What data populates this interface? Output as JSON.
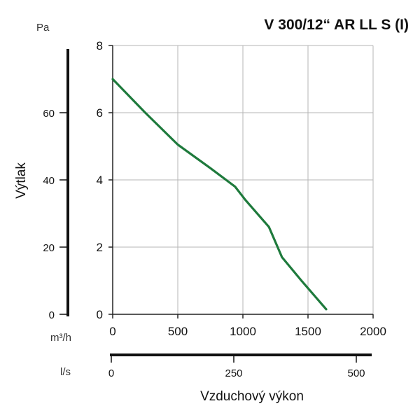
{
  "chart_data": {
    "type": "line",
    "title": "V 300/12“ AR LL S (I)",
    "xlabel": "Vzduchový výkon",
    "ylabel": "Výtlak",
    "x_unit": "m³/h",
    "x_secondary_unit": "l/s",
    "y_unit": "Pa",
    "xlim": [
      0,
      2000
    ],
    "x_ticks": [
      0,
      500,
      1000,
      1500,
      2000
    ],
    "x_secondary_ticks": [
      0,
      250,
      500
    ],
    "x_secondary_lim": [
      0,
      500
    ],
    "ylim": [
      0,
      8
    ],
    "y_ticks": [
      0,
      2,
      4,
      6,
      8
    ],
    "y_secondary_ticks": [
      0,
      20,
      40,
      60
    ],
    "y_secondary_lim": [
      0,
      80
    ],
    "grid": true,
    "series": [
      {
        "name": "",
        "color": "#1e7a3c",
        "x": [
          0,
          250,
          500,
          750,
          940,
          1020,
          1200,
          1300,
          1450,
          1640
        ],
        "y": [
          7.0,
          6.0,
          5.05,
          4.35,
          3.8,
          3.4,
          2.6,
          1.7,
          1.0,
          0.15
        ]
      }
    ]
  }
}
